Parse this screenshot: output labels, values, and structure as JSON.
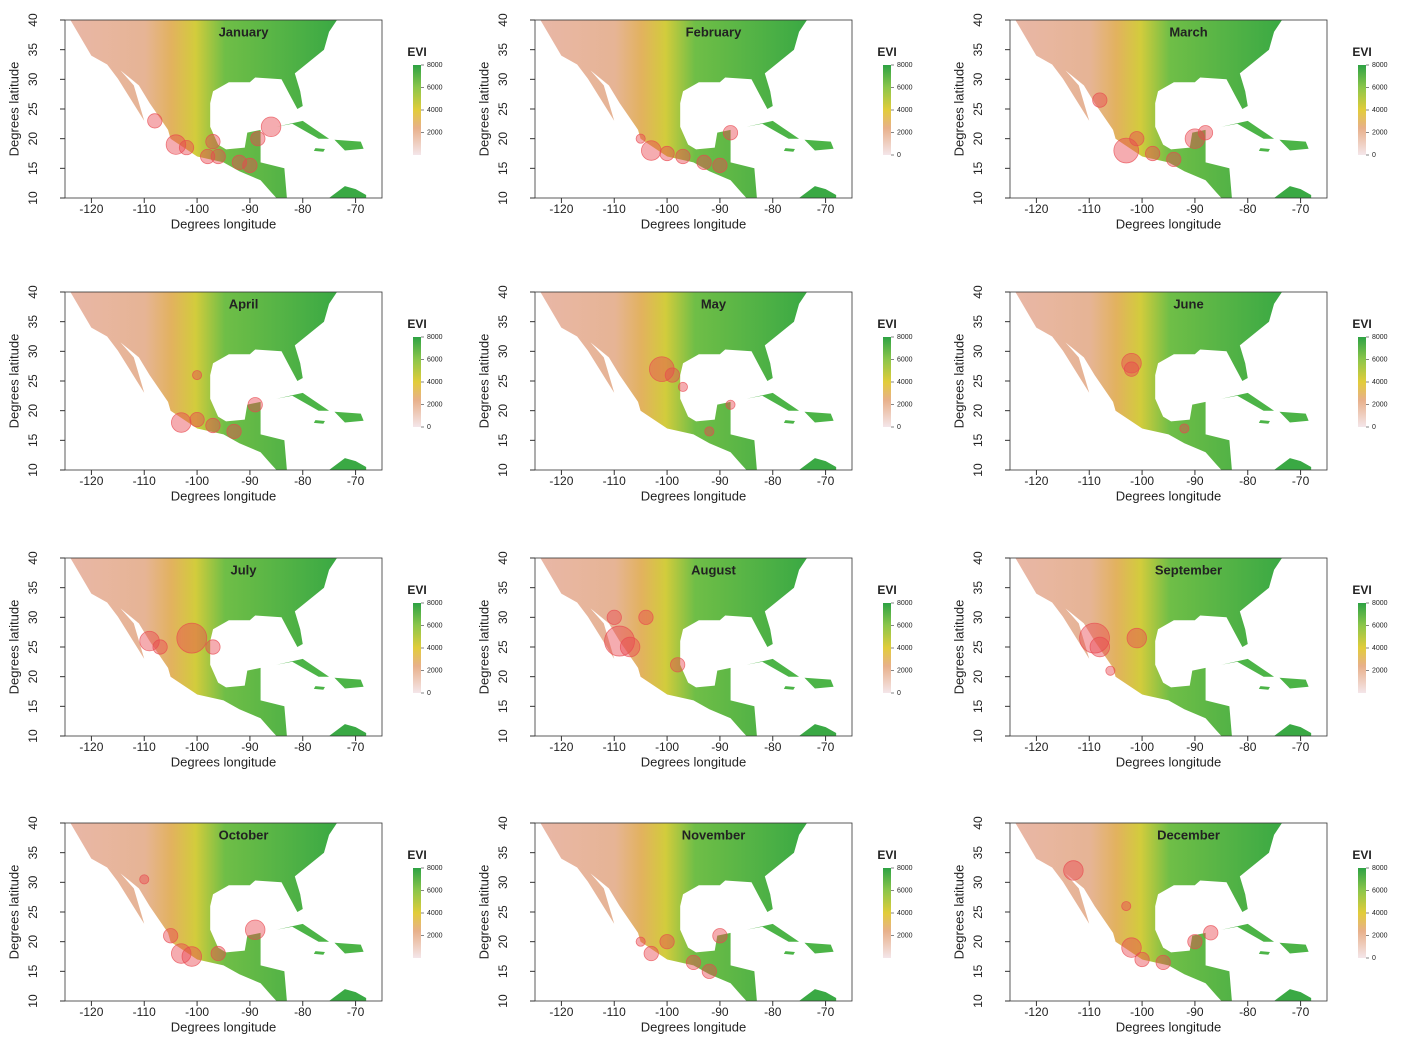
{
  "chart_data": [
    {
      "type": "map",
      "title": "January",
      "xlabel": "Degrees longitude",
      "ylabel": "Degrees latitude",
      "xlim": [
        -125,
        -65
      ],
      "ylim": [
        10,
        40
      ],
      "xticks": [
        -120,
        -110,
        -100,
        -90,
        -80,
        -70
      ],
      "yticks": [
        10,
        15,
        20,
        25,
        30,
        35,
        40
      ],
      "colorbar_label": "EVI",
      "colorbar_lim": [
        0,
        8000
      ],
      "colorbar_ticks": [
        2000,
        4000,
        6000,
        8000
      ],
      "color": "#e8474f",
      "x": [
        -108,
        -104,
        -102,
        -98,
        -96,
        -92,
        -90,
        -88.5,
        -86,
        -97
      ],
      "y": [
        23,
        19,
        18.5,
        17,
        17,
        16,
        15.5,
        20,
        22,
        19.5
      ],
      "sizes": [
        2,
        3,
        2,
        2,
        2,
        2,
        2,
        2,
        3,
        2
      ]
    },
    {
      "type": "map",
      "title": "February",
      "xlabel": "Degrees longitude",
      "ylabel": "Degrees latitude",
      "xlim": [
        -125,
        -65
      ],
      "ylim": [
        10,
        40
      ],
      "xticks": [
        -120,
        -110,
        -100,
        -90,
        -80,
        -70
      ],
      "yticks": [
        10,
        15,
        20,
        25,
        30,
        35,
        40
      ],
      "colorbar_label": "EVI",
      "colorbar_lim": [
        0,
        8000
      ],
      "colorbar_ticks": [
        0,
        2000,
        4000,
        6000,
        8000
      ],
      "color": "#e8474f",
      "x": [
        -103,
        -100,
        -97,
        -93,
        -90,
        -88,
        -105
      ],
      "y": [
        18,
        17.5,
        17,
        16,
        15.5,
        21,
        20
      ],
      "sizes": [
        3,
        2,
        2,
        2,
        2,
        2,
        1
      ]
    },
    {
      "type": "map",
      "title": "March",
      "xlabel": "Degrees longitude",
      "ylabel": "Degrees latitude",
      "xlim": [
        -125,
        -65
      ],
      "ylim": [
        10,
        40
      ],
      "xticks": [
        -120,
        -110,
        -100,
        -90,
        -80,
        -70
      ],
      "yticks": [
        10,
        15,
        20,
        25,
        30,
        35,
        40
      ],
      "colorbar_label": "EVI",
      "colorbar_lim": [
        0,
        8000
      ],
      "colorbar_ticks": [
        0,
        2000,
        4000,
        6000,
        8000
      ],
      "color": "#e8474f",
      "x": [
        -108,
        -103,
        -101,
        -98,
        -94,
        -90,
        -88
      ],
      "y": [
        26.5,
        18,
        20,
        17.5,
        16.5,
        20,
        21
      ],
      "sizes": [
        2,
        4,
        2,
        2,
        2,
        3,
        2
      ]
    },
    {
      "type": "map",
      "title": "April",
      "xlabel": "Degrees longitude",
      "ylabel": "Degrees latitude",
      "xlim": [
        -125,
        -65
      ],
      "ylim": [
        10,
        40
      ],
      "xticks": [
        -120,
        -110,
        -100,
        -90,
        -80,
        -70
      ],
      "yticks": [
        10,
        15,
        20,
        25,
        30,
        35,
        40
      ],
      "colorbar_label": "EVI",
      "colorbar_lim": [
        0,
        8000
      ],
      "colorbar_ticks": [
        0,
        2000,
        4000,
        6000,
        8000
      ],
      "color": "#e8474f",
      "x": [
        -103,
        -100,
        -97,
        -93,
        -89,
        -100
      ],
      "y": [
        18,
        18.5,
        17.5,
        16.5,
        21,
        26
      ],
      "sizes": [
        3,
        2,
        2,
        2,
        2,
        1
      ]
    },
    {
      "type": "map",
      "title": "May",
      "xlabel": "Degrees longitude",
      "ylabel": "Degrees latitude",
      "xlim": [
        -125,
        -65
      ],
      "ylim": [
        10,
        40
      ],
      "xticks": [
        -120,
        -110,
        -100,
        -90,
        -80,
        -70
      ],
      "yticks": [
        10,
        15,
        20,
        25,
        30,
        35,
        40
      ],
      "colorbar_label": "EVI",
      "colorbar_lim": [
        0,
        8000
      ],
      "colorbar_ticks": [
        0,
        2000,
        4000,
        6000,
        8000
      ],
      "color": "#e8474f",
      "x": [
        -101,
        -99,
        -97,
        -92,
        -88
      ],
      "y": [
        27,
        26,
        24,
        16.5,
        21
      ],
      "sizes": [
        4,
        2,
        1,
        1,
        1
      ]
    },
    {
      "type": "map",
      "title": "June",
      "xlabel": "Degrees longitude",
      "ylabel": "Degrees latitude",
      "xlim": [
        -125,
        -65
      ],
      "ylim": [
        10,
        40
      ],
      "xticks": [
        -120,
        -110,
        -100,
        -90,
        -80,
        -70
      ],
      "yticks": [
        10,
        15,
        20,
        25,
        30,
        35,
        40
      ],
      "colorbar_label": "EVI",
      "colorbar_lim": [
        0,
        8000
      ],
      "colorbar_ticks": [
        0,
        2000,
        4000,
        6000,
        8000
      ],
      "color": "#e8474f",
      "x": [
        -102,
        -102,
        -92
      ],
      "y": [
        28,
        27,
        17
      ],
      "sizes": [
        3,
        2,
        1
      ]
    },
    {
      "type": "map",
      "title": "July",
      "xlabel": "Degrees longitude",
      "ylabel": "Degrees latitude",
      "xlim": [
        -125,
        -65
      ],
      "ylim": [
        10,
        40
      ],
      "xticks": [
        -120,
        -110,
        -100,
        -90,
        -80,
        -70
      ],
      "yticks": [
        10,
        15,
        20,
        25,
        30,
        35,
        40
      ],
      "colorbar_label": "EVI",
      "colorbar_lim": [
        0,
        8000
      ],
      "colorbar_ticks": [
        0,
        2000,
        4000,
        6000,
        8000
      ],
      "color": "#e8474f",
      "x": [
        -109,
        -107,
        -101,
        -97
      ],
      "y": [
        26,
        25,
        26.5,
        25
      ],
      "sizes": [
        3,
        2,
        5,
        2
      ]
    },
    {
      "type": "map",
      "title": "August",
      "xlabel": "Degrees longitude",
      "ylabel": "Degrees latitude",
      "xlim": [
        -125,
        -65
      ],
      "ylim": [
        10,
        40
      ],
      "xticks": [
        -120,
        -110,
        -100,
        -90,
        -80,
        -70
      ],
      "yticks": [
        10,
        15,
        20,
        25,
        30,
        35,
        40
      ],
      "colorbar_label": "EVI",
      "colorbar_lim": [
        0,
        8000
      ],
      "colorbar_ticks": [
        0,
        2000,
        4000,
        6000,
        8000
      ],
      "color": "#e8474f",
      "x": [
        -109,
        -110,
        -107,
        -104,
        -98
      ],
      "y": [
        26,
        30,
        25,
        30,
        22
      ],
      "sizes": [
        5,
        2,
        3,
        2,
        2
      ]
    },
    {
      "type": "map",
      "title": "September",
      "xlabel": "Degrees longitude",
      "ylabel": "Degrees latitude",
      "xlim": [
        -125,
        -65
      ],
      "ylim": [
        10,
        40
      ],
      "xticks": [
        -120,
        -110,
        -100,
        -90,
        -80,
        -70
      ],
      "yticks": [
        10,
        15,
        20,
        25,
        30,
        35,
        40
      ],
      "colorbar_label": "EVI",
      "colorbar_lim": [
        0,
        8000
      ],
      "colorbar_ticks": [
        2000,
        4000,
        6000,
        8000
      ],
      "color": "#e8474f",
      "x": [
        -109,
        -108,
        -101,
        -106
      ],
      "y": [
        26.5,
        25,
        26.5,
        21
      ],
      "sizes": [
        5,
        3,
        3,
        1
      ]
    },
    {
      "type": "map",
      "title": "October",
      "xlabel": "Degrees longitude",
      "ylabel": "Degrees latitude",
      "xlim": [
        -125,
        -65
      ],
      "ylim": [
        10,
        40
      ],
      "xticks": [
        -120,
        -110,
        -100,
        -90,
        -80,
        -70
      ],
      "yticks": [
        10,
        15,
        20,
        25,
        30,
        35,
        40
      ],
      "colorbar_label": "EVI",
      "colorbar_lim": [
        0,
        8000
      ],
      "colorbar_ticks": [
        2000,
        4000,
        6000,
        8000
      ],
      "color": "#e8474f",
      "x": [
        -110,
        -103,
        -101,
        -89,
        -96,
        -105
      ],
      "y": [
        30.5,
        18,
        17.5,
        22,
        18,
        21
      ],
      "sizes": [
        1,
        3,
        3,
        3,
        2,
        2
      ]
    },
    {
      "type": "map",
      "title": "November",
      "xlabel": "Degrees longitude",
      "ylabel": "Degrees latitude",
      "xlim": [
        -125,
        -65
      ],
      "ylim": [
        10,
        40
      ],
      "xticks": [
        -120,
        -110,
        -100,
        -90,
        -80,
        -70
      ],
      "yticks": [
        10,
        15,
        20,
        25,
        30,
        35,
        40
      ],
      "colorbar_label": "EVI",
      "colorbar_lim": [
        0,
        8000
      ],
      "colorbar_ticks": [
        2000,
        4000,
        6000,
        8000
      ],
      "color": "#e8474f",
      "x": [
        -103,
        -100,
        -95,
        -92,
        -90,
        -105
      ],
      "y": [
        18,
        20,
        16.5,
        15,
        21,
        20
      ],
      "sizes": [
        2,
        2,
        2,
        2,
        2,
        1
      ]
    },
    {
      "type": "map",
      "title": "December",
      "xlabel": "Degrees longitude",
      "ylabel": "Degrees latitude",
      "xlim": [
        -125,
        -65
      ],
      "ylim": [
        10,
        40
      ],
      "xticks": [
        -120,
        -110,
        -100,
        -90,
        -80,
        -70
      ],
      "yticks": [
        10,
        15,
        20,
        25,
        30,
        35,
        40
      ],
      "colorbar_label": "EVI",
      "colorbar_lim": [
        0,
        8000
      ],
      "colorbar_ticks": [
        0,
        2000,
        4000,
        6000,
        8000
      ],
      "color": "#e8474f",
      "x": [
        -113,
        -102,
        -100,
        -96,
        -90,
        -87,
        -103
      ],
      "y": [
        32,
        19,
        17,
        16.5,
        20,
        21.5,
        26
      ],
      "sizes": [
        3,
        3,
        2,
        2,
        2,
        2,
        1
      ]
    }
  ]
}
